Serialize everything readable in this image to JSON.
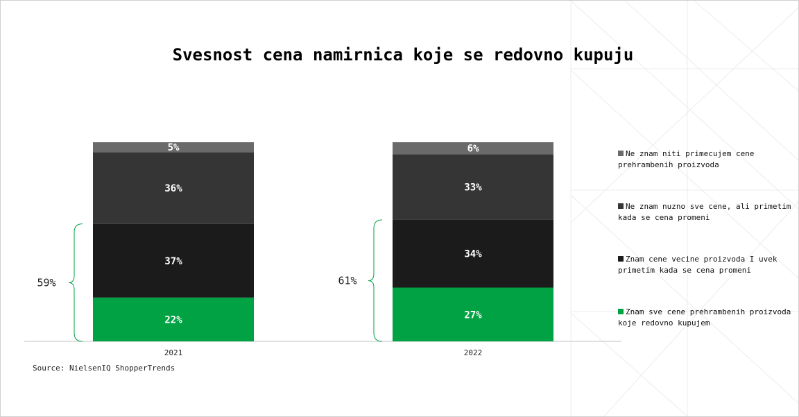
{
  "title": "Svesnost cena namirnica koje se redovno kupuju",
  "source": "Source: NielsenIQ ShopperTrends",
  "chart_data": {
    "type": "bar",
    "stacked": true,
    "categories": [
      "2021",
      "2022"
    ],
    "series": [
      {
        "name": "Znam sve cene prehrambenih proizvoda koje redovno kupujem",
        "values": [
          22,
          27
        ],
        "color": "#00a243"
      },
      {
        "name": "Znam cene vecine proizvoda I uvek primetim kada se cena promeni",
        "values": [
          37,
          34
        ],
        "color": "#1b1b1b"
      },
      {
        "name": "Ne znam nuzno sve cene, ali primetim kada se cena promeni",
        "values": [
          36,
          33
        ],
        "color": "#353535"
      },
      {
        "name": "Ne znam niti primecujem cene prehrambenih proizvoda",
        "values": [
          5,
          6
        ],
        "color": "#6a6a6a"
      }
    ],
    "data_labels": [
      [
        "22%",
        "37%",
        "36%",
        "5%"
      ],
      [
        "27%",
        "34%",
        "33%",
        "6%"
      ]
    ],
    "brackets": [
      "59%",
      "61%"
    ],
    "ylim": [
      0,
      100
    ],
    "grid": false,
    "legend": "right"
  }
}
